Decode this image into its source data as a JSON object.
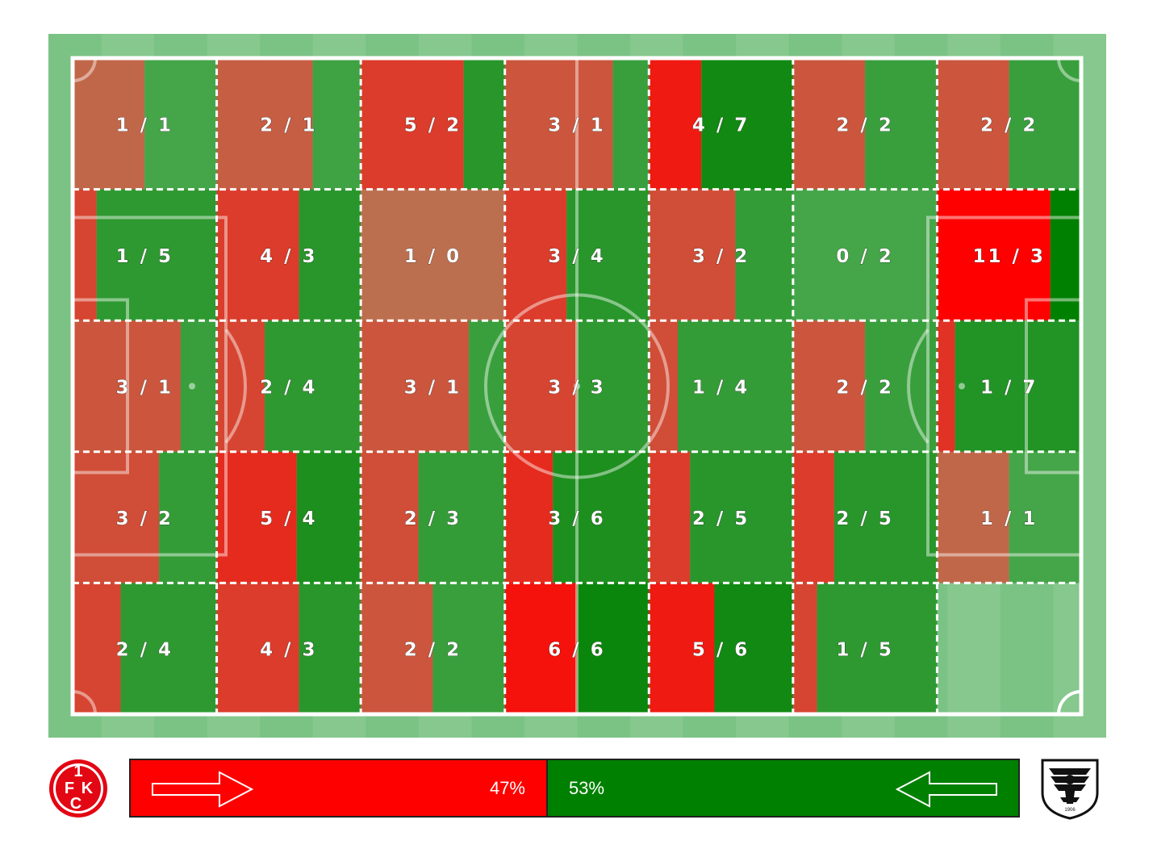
{
  "chart_data": {
    "type": "heatmap",
    "rows": 5,
    "cols": 7,
    "cells": [
      [
        {
          "home": 1,
          "away": 1
        },
        {
          "home": 2,
          "away": 1
        },
        {
          "home": 5,
          "away": 2
        },
        {
          "home": 3,
          "away": 1
        },
        {
          "home": 4,
          "away": 7
        },
        {
          "home": 2,
          "away": 2
        },
        {
          "home": 2,
          "away": 2
        }
      ],
      [
        {
          "home": 1,
          "away": 5
        },
        {
          "home": 4,
          "away": 3
        },
        {
          "home": 1,
          "away": 0
        },
        {
          "home": 3,
          "away": 4
        },
        {
          "home": 3,
          "away": 2
        },
        {
          "home": 0,
          "away": 2
        },
        {
          "home": 11,
          "away": 3
        }
      ],
      [
        {
          "home": 3,
          "away": 1
        },
        {
          "home": 2,
          "away": 4
        },
        {
          "home": 3,
          "away": 1
        },
        {
          "home": 3,
          "away": 3
        },
        {
          "home": 1,
          "away": 4
        },
        {
          "home": 2,
          "away": 2
        },
        {
          "home": 1,
          "away": 7
        }
      ],
      [
        {
          "home": 3,
          "away": 2
        },
        {
          "home": 5,
          "away": 4
        },
        {
          "home": 2,
          "away": 3
        },
        {
          "home": 3,
          "away": 6
        },
        {
          "home": 2,
          "away": 5
        },
        {
          "home": 2,
          "away": 5
        },
        {
          "home": 1,
          "away": 1
        }
      ],
      [
        {
          "home": 2,
          "away": 4
        },
        {
          "home": 4,
          "away": 3
        },
        {
          "home": 2,
          "away": 2
        },
        {
          "home": 6,
          "away": 6
        },
        {
          "home": 5,
          "away": 6
        },
        {
          "home": 1,
          "away": 5
        },
        null
      ]
    ],
    "labels": [
      [
        "1 / 1",
        "2 / 1",
        "5 / 2",
        "3 / 1",
        "4 / 7",
        "2 / 2",
        "2 / 2"
      ],
      [
        "1 / 5",
        "4 / 3",
        "1 / 0",
        "3 / 4",
        "3 / 2",
        "0 / 2",
        "11 / 3"
      ],
      [
        "3 / 1",
        "2 / 4",
        "3 / 1",
        "3 / 3",
        "1 / 4",
        "2 / 2",
        "1 / 7"
      ],
      [
        "3 / 2",
        "5 / 4",
        "2 / 3",
        "3 / 6",
        "2 / 5",
        "2 / 5",
        "1 / 1"
      ],
      [
        "2 / 4",
        "4 / 3",
        "2 / 2",
        "6 / 6",
        "5 / 6",
        "1 / 5",
        ""
      ]
    ],
    "max_total": 14,
    "colors": {
      "home": "#ff0000",
      "away": "#008000",
      "pitch_light": "#86c88e",
      "pitch_dark": "#7bc285",
      "lines": "#ffffff"
    }
  },
  "possession": {
    "home_value": 47,
    "away_value": 53,
    "home_label": "47%",
    "away_label": "53%",
    "home_color": "#ff0000",
    "away_color": "#008000",
    "home_direction": "right-arrow",
    "away_direction": "left-arrow"
  },
  "logos": {
    "home": {
      "icon": "fck-crest-icon",
      "text": "1 FCK",
      "color": "#e30613"
    },
    "away": {
      "icon": "eagle-crest-icon",
      "text": "1906"
    }
  }
}
